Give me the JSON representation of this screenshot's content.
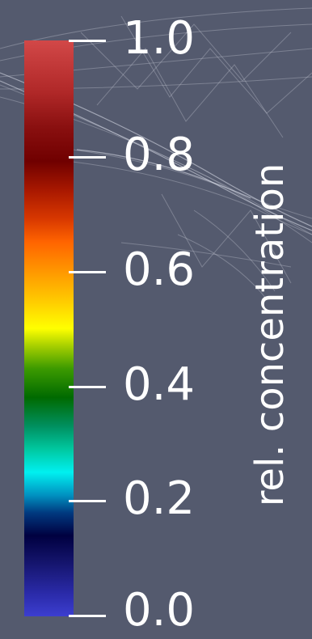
{
  "legend": {
    "title": "rel. concentration",
    "ticks": [
      {
        "label": "1.0",
        "value": 1.0
      },
      {
        "label": "0.8",
        "value": 0.8
      },
      {
        "label": "0.6",
        "value": 0.6
      },
      {
        "label": "0.4",
        "value": 0.4
      },
      {
        "label": "0.2",
        "value": 0.2
      },
      {
        "label": "0.0",
        "value": 0.0
      }
    ],
    "range": [
      0.0,
      1.0
    ],
    "colormap": [
      "#3c3ed0",
      "#000040",
      "#00f0f0",
      "#006a00",
      "#ffff00",
      "#ff6400",
      "#700000",
      "#d24848"
    ]
  },
  "colors": {
    "background": "#545a6e",
    "mesh_lines": "#c8ccd8",
    "text": "#ffffff"
  }
}
